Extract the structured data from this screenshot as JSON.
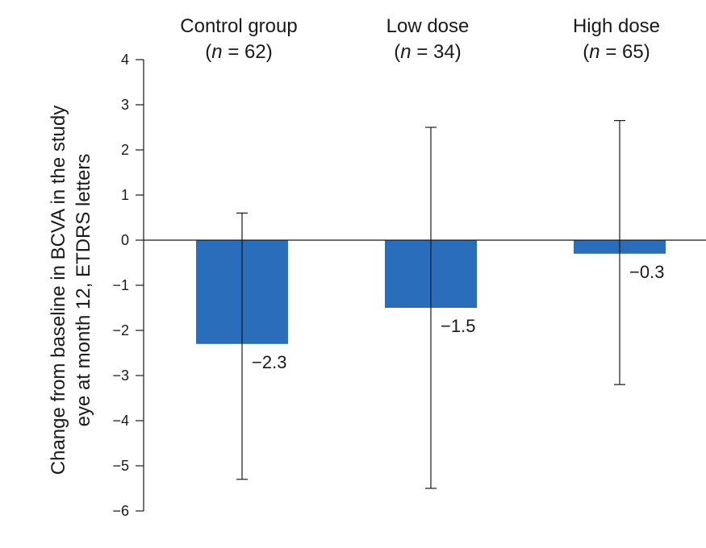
{
  "chart_data": {
    "type": "bar",
    "title": "",
    "categories": [
      {
        "name": "Control group",
        "n_label": "(n = 62)",
        "n_prefix": "(",
        "n_symbol": "n",
        "n_suffix": " = 62)"
      },
      {
        "name": "Low dose",
        "n_label": "(n = 34)",
        "n_prefix": "(",
        "n_symbol": "n",
        "n_suffix": " = 34)"
      },
      {
        "name": "High dose",
        "n_label": "(n = 65)",
        "n_prefix": "(",
        "n_symbol": "n",
        "n_suffix": " = 65)"
      }
    ],
    "values": [
      -2.3,
      -1.5,
      -0.3
    ],
    "value_labels": [
      "−2.3",
      "−1.5",
      "−0.3"
    ],
    "error_bars": [
      {
        "lower": -5.3,
        "upper": 0.6
      },
      {
        "lower": -5.5,
        "upper": 2.5
      },
      {
        "lower": -3.2,
        "upper": 2.65
      }
    ],
    "ylabel_lines": [
      "Change from baseline in BCVA in the study",
      "eye at month 12, ETDRS letters"
    ],
    "xlabel": "",
    "ylim": [
      -6,
      4
    ],
    "yticks": [
      4,
      3,
      2,
      1,
      0,
      -1,
      -2,
      -3,
      -4,
      -5,
      -6
    ],
    "ytick_labels": [
      "4",
      "3",
      "2",
      "1",
      "0",
      "−1",
      "−2",
      "−3",
      "−4",
      "−5",
      "−6"
    ],
    "bar_color": "#2a6ebb",
    "axis_color": "#1a1a1a",
    "grid": false,
    "legend": "none"
  }
}
